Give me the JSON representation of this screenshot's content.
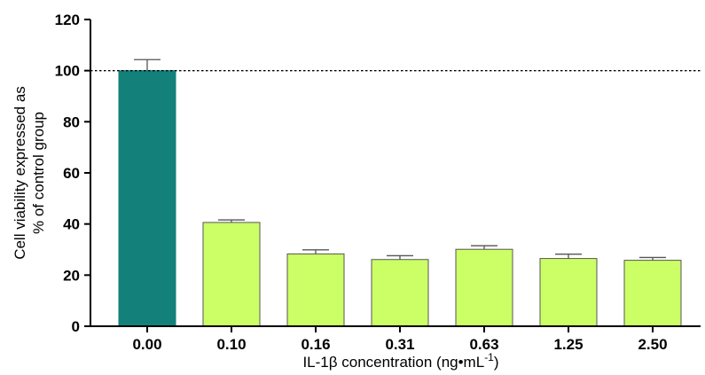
{
  "chart_data": {
    "type": "bar",
    "categories": [
      "0.00",
      "0.10",
      "0.16",
      "0.31",
      "0.63",
      "1.25",
      "2.50"
    ],
    "values": [
      100,
      40.6,
      28.3,
      26.1,
      30.1,
      26.5,
      25.8
    ],
    "error": [
      4.3,
      1.0,
      1.6,
      1.5,
      1.4,
      1.7,
      1.1
    ],
    "xlabel": "IL-1β concentration (ng•mL",
    "xlabel_superscript": "-1",
    "xlabel_suffix": ")",
    "ylabel_line1": "Cell viability expressed as",
    "ylabel_line2": "% of control group",
    "ylim": [
      0,
      120
    ],
    "yticks": [
      "0",
      "20",
      "40",
      "60",
      "80",
      "100",
      "120"
    ],
    "reference_line": 100,
    "colors": {
      "control": "#13807a",
      "treated": "#ccff66",
      "bar_edge": "#555555"
    }
  }
}
